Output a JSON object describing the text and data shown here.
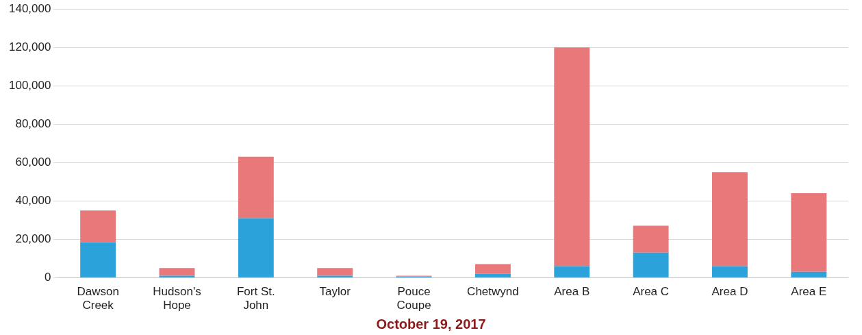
{
  "chart_data": {
    "type": "bar",
    "stacked": true,
    "categories": [
      "Dawson Creek",
      "Hudson's Hope",
      "Fort St. John",
      "Taylor",
      "Pouce Coupe",
      "Chetwynd",
      "Area B",
      "Area C",
      "Area D",
      "Area E"
    ],
    "series": [
      {
        "color": "#2ba3da",
        "values": [
          18500,
          1000,
          31000,
          1000,
          500,
          2000,
          6000,
          13000,
          6000,
          3000
        ]
      },
      {
        "color": "#e8787a",
        "values": [
          16500,
          4000,
          32000,
          4000,
          500,
          5000,
          114000,
          14000,
          49000,
          41000
        ]
      }
    ],
    "ylim": [
      0,
      140000
    ],
    "yticks": [
      {
        "value": 0,
        "label": "0"
      },
      {
        "value": 20000,
        "label": "20,000"
      },
      {
        "value": 40000,
        "label": "40,000"
      },
      {
        "value": 60000,
        "label": "60,000"
      },
      {
        "value": 80000,
        "label": "80,000"
      },
      {
        "value": 100000,
        "label": "100,000"
      },
      {
        "value": 120000,
        "label": "120,000"
      },
      {
        "value": 140000,
        "label": "140,000"
      }
    ],
    "grid": "y",
    "legend": false,
    "annotations": [
      "October 19, 2017"
    ]
  }
}
